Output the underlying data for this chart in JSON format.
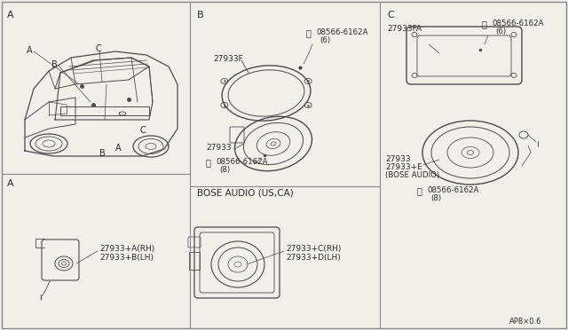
{
  "bg_color": "#f0efe8",
  "line_color": "#4a4a4a",
  "text_color": "#2a2a2a",
  "border_color": "#888888",
  "diagram_ref": "AP8×0.6",
  "sec_A": "A",
  "sec_B": "B",
  "sec_C": "C",
  "partB_27933F": "27933F",
  "partB_screw1_label": "08566-6162A",
  "partB_screw1_qty": "(6)",
  "partB_27933": "27933",
  "partB_screw2_label": "08566-6162A",
  "partB_screw2_qty": "(8)",
  "partB_bose_label": "BOSE AUDIO (US,CA)",
  "partB_bose_RH": "27933+C(RH)",
  "partB_bose_LH": "27933+D(LH)",
  "partA_RH": "27933+A(RH)",
  "partA_LH": "27933+B(LH)",
  "partC_27933FA": "27933FA",
  "partC_screw1_label": "08566-6162A",
  "partC_screw1_qty": "(6)",
  "partC_27933": "27933",
  "partC_27933E": "27933+E",
  "partC_bose": "(BOSE AUDIO)",
  "partC_screw2_label": "08566-6162A",
  "partC_screw2_qty": "(8)"
}
